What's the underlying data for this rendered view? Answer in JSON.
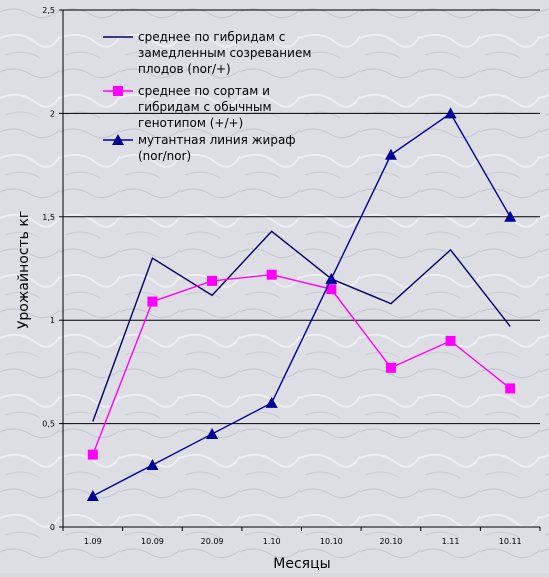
{
  "chart_data": {
    "type": "line",
    "title": "",
    "xlabel": "Месяцы",
    "ylabel": "Урожайность кг",
    "categories": [
      "1.09",
      "10.09",
      "20.09",
      "1.10",
      "10.10",
      "20.10",
      "1.11",
      "10.11"
    ],
    "ylim": [
      0,
      2.5
    ],
    "yticks": [
      "0",
      "0,5",
      "1",
      "1,5",
      "2",
      "2,5"
    ],
    "grid": true,
    "legend_position": "top-left inside",
    "series": [
      {
        "name": "среднее по гибридам с замедленным созреванием плодов (nor/+)",
        "name_lines": [
          "среднее по гибридам с",
          "замедленным созреванием",
          "плодов (nor/+)"
        ],
        "values": [
          0.51,
          1.3,
          1.12,
          1.43,
          1.2,
          1.08,
          1.34,
          0.97
        ],
        "color": "#000066",
        "marker": "none"
      },
      {
        "name": "среднее по сортам и гибридам с обычным генотипом (+/+)",
        "name_lines": [
          "среднее по сортам и",
          "гибридам с обычным",
          "генотипом (+/+)"
        ],
        "values": [
          0.35,
          1.09,
          1.19,
          1.22,
          1.15,
          0.77,
          0.9,
          0.67
        ],
        "color": "#ff00ff",
        "marker": "square"
      },
      {
        "name": "мутантная линия жираф (nor/nor)",
        "name_lines": [
          "мутантная линия жираф",
          "(nor/nor)"
        ],
        "values": [
          0.15,
          0.3,
          0.45,
          0.6,
          1.2,
          1.8,
          2.0,
          1.5
        ],
        "color": "#000099",
        "marker": "triangle"
      }
    ]
  }
}
